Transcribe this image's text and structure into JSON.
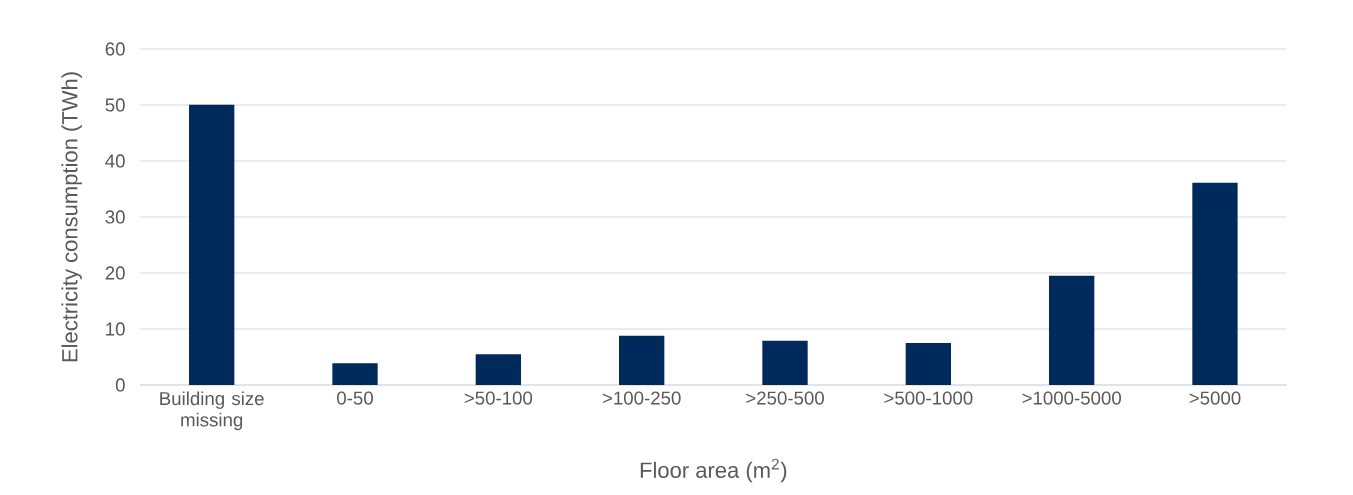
{
  "chart_data": {
    "type": "bar",
    "xlabel": "Floor area (m$^{2}$)",
    "ylabel": "Electricity consumption (TWh)",
    "categories": [
      "Building size missing",
      "0-50",
      ">50-100",
      ">100-250",
      ">250-500",
      ">500-1000",
      ">1000-5000",
      ">5000"
    ],
    "values": [
      50.1,
      3.9,
      5.5,
      8.8,
      7.9,
      7.5,
      19.5,
      36.1
    ],
    "color": "#002a5c",
    "ylim": [
      0,
      60
    ],
    "yticks": [
      0,
      10,
      20,
      30,
      40,
      50,
      60
    ],
    "grid": "y"
  }
}
